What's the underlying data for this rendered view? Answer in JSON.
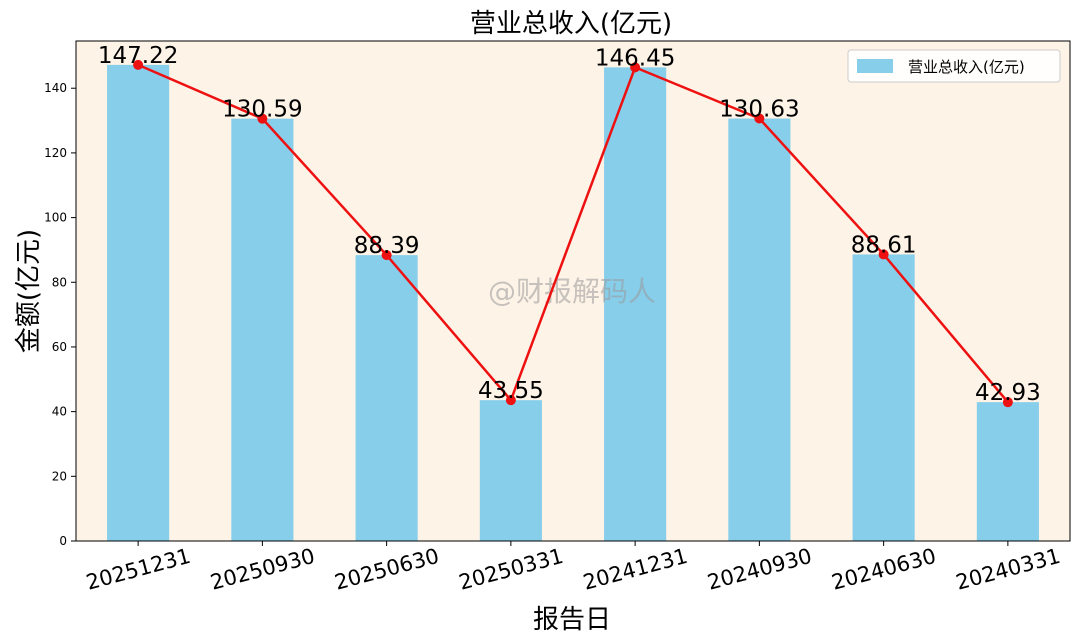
{
  "chart_data": {
    "type": "bar",
    "title": "营业总收入(亿元)",
    "xlabel": "报告日",
    "ylabel": "金额(亿元)",
    "categories": [
      "20251231",
      "20250930",
      "20250630",
      "20250331",
      "20241231",
      "20240930",
      "20240630",
      "20240331"
    ],
    "series": [
      {
        "name": "营业总收入(亿元)",
        "type": "bar",
        "values": [
          147.22,
          130.59,
          88.39,
          43.55,
          146.45,
          130.63,
          88.61,
          42.93
        ],
        "data_labels": [
          "147.22",
          "130.59",
          "88.39",
          "43.55",
          "146.45",
          "130.63",
          "88.61",
          "42.93"
        ]
      },
      {
        "type": "line",
        "values": [
          147.22,
          130.59,
          88.39,
          43.55,
          146.45,
          130.63,
          88.61,
          42.93
        ]
      }
    ],
    "yticks": [
      0,
      20,
      40,
      60,
      80,
      100,
      120,
      140
    ],
    "ylim": [
      0,
      154.6
    ],
    "grid": false,
    "legend_position": "top-right",
    "watermark": "@财报解码人",
    "colors": {
      "bar": "#87ceeb",
      "line": "#ee1111",
      "plot_background": "#fdf3e6",
      "page_background": "#ffffff"
    }
  }
}
